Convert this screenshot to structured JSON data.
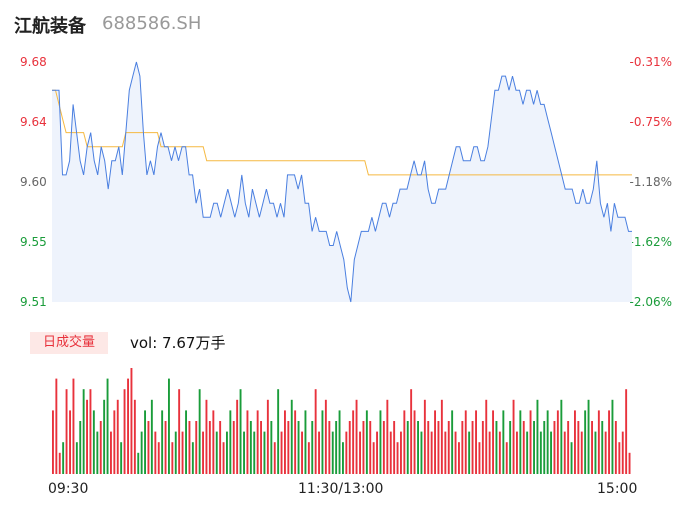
{
  "header": {
    "name": "江航装备",
    "code": "688586.SH"
  },
  "colors": {
    "price_line": "#4a7fe0",
    "avg_line": "#f5b942",
    "up": "#e8323c",
    "down": "#1a9c3a",
    "area": "#eef3fc"
  },
  "volume": {
    "badge": "日成交量",
    "text": "vol: 7.67万手"
  },
  "chart_data": {
    "type": "line",
    "x_ticks": [
      "09:30",
      "11:30/13:00",
      "15:00"
    ],
    "y_left_ticks": [
      "9.68",
      "9.64",
      "9.60",
      "9.55",
      "9.51"
    ],
    "y_right_ticks": [
      "-0.31%",
      "-0.75%",
      "-1.18%",
      "-1.62%",
      "-2.06%"
    ],
    "ylim": [
      9.51,
      9.68
    ],
    "price": [
      9.66,
      9.66,
      9.66,
      9.6,
      9.6,
      9.61,
      9.65,
      9.63,
      9.61,
      9.6,
      9.62,
      9.63,
      9.61,
      9.6,
      9.62,
      9.61,
      9.59,
      9.61,
      9.61,
      9.62,
      9.6,
      9.63,
      9.66,
      9.67,
      9.68,
      9.67,
      9.63,
      9.6,
      9.61,
      9.6,
      9.62,
      9.63,
      9.62,
      9.62,
      9.61,
      9.62,
      9.61,
      9.62,
      9.62,
      9.6,
      9.6,
      9.58,
      9.59,
      9.57,
      9.57,
      9.57,
      9.58,
      9.58,
      9.57,
      9.58,
      9.59,
      9.58,
      9.57,
      9.58,
      9.6,
      9.58,
      9.57,
      9.59,
      9.58,
      9.57,
      9.58,
      9.59,
      9.58,
      9.58,
      9.57,
      9.58,
      9.57,
      9.6,
      9.6,
      9.6,
      9.59,
      9.6,
      9.58,
      9.58,
      9.56,
      9.57,
      9.56,
      9.56,
      9.56,
      9.55,
      9.55,
      9.56,
      9.55,
      9.54,
      9.52,
      9.51,
      9.54,
      9.55,
      9.56,
      9.56,
      9.56,
      9.57,
      9.56,
      9.57,
      9.58,
      9.58,
      9.57,
      9.58,
      9.58,
      9.59,
      9.59,
      9.59,
      9.6,
      9.61,
      9.6,
      9.6,
      9.61,
      9.59,
      9.58,
      9.58,
      9.59,
      9.59,
      9.59,
      9.6,
      9.61,
      9.62,
      9.62,
      9.61,
      9.61,
      9.61,
      9.62,
      9.62,
      9.61,
      9.61,
      9.62,
      9.64,
      9.66,
      9.66,
      9.67,
      9.67,
      9.66,
      9.67,
      9.66,
      9.66,
      9.65,
      9.66,
      9.66,
      9.65,
      9.66,
      9.65,
      9.65,
      9.64,
      9.63,
      9.62,
      9.61,
      9.6,
      9.59,
      9.59,
      9.59,
      9.58,
      9.58,
      9.59,
      9.58,
      9.58,
      9.59,
      9.61,
      9.58,
      9.57,
      9.58,
      9.56,
      9.58,
      9.57,
      9.57,
      9.57,
      9.56,
      9.56
    ],
    "avg": [
      9.66,
      9.66,
      9.65,
      9.64,
      9.63,
      9.63,
      9.63,
      9.63,
      9.63,
      9.63,
      9.62,
      9.62,
      9.62,
      9.62,
      9.62,
      9.62,
      9.62,
      9.62,
      9.62,
      9.62,
      9.62,
      9.63,
      9.63,
      9.63,
      9.63,
      9.63,
      9.63,
      9.63,
      9.63,
      9.63,
      9.63,
      9.62,
      9.62,
      9.62,
      9.62,
      9.62,
      9.62,
      9.62,
      9.62,
      9.62,
      9.62,
      9.62,
      9.62,
      9.62,
      9.61,
      9.61,
      9.61,
      9.61,
      9.61,
      9.61,
      9.61,
      9.61,
      9.61,
      9.61,
      9.61,
      9.61,
      9.61,
      9.61,
      9.61,
      9.61,
      9.61,
      9.61,
      9.61,
      9.61,
      9.61,
      9.61,
      9.61,
      9.61,
      9.61,
      9.61,
      9.61,
      9.61,
      9.61,
      9.61,
      9.61,
      9.61,
      9.61,
      9.61,
      9.61,
      9.61,
      9.61,
      9.61,
      9.61,
      9.61,
      9.61,
      9.61,
      9.61,
      9.61,
      9.61,
      9.61,
      9.6,
      9.6,
      9.6,
      9.6,
      9.6,
      9.6,
      9.6,
      9.6,
      9.6,
      9.6,
      9.6,
      9.6,
      9.6,
      9.6,
      9.6,
      9.6,
      9.6,
      9.6,
      9.6,
      9.6,
      9.6,
      9.6,
      9.6,
      9.6,
      9.6,
      9.6,
      9.6,
      9.6,
      9.6,
      9.6,
      9.6,
      9.6,
      9.6,
      9.6,
      9.6,
      9.6,
      9.6,
      9.6,
      9.6,
      9.6,
      9.6,
      9.6,
      9.6,
      9.6,
      9.6,
      9.6,
      9.6,
      9.6,
      9.6,
      9.6,
      9.6,
      9.6,
      9.6,
      9.6,
      9.6,
      9.6,
      9.6,
      9.6,
      9.6,
      9.6,
      9.6,
      9.6,
      9.6,
      9.6,
      9.6,
      9.6,
      9.6,
      9.6,
      9.6,
      9.6,
      9.6,
      9.6,
      9.6,
      9.6,
      9.6,
      9.6
    ],
    "volumes": [
      6,
      9,
      2,
      3,
      8,
      6,
      9,
      3,
      5,
      8,
      7,
      8,
      6,
      4,
      5,
      7,
      9,
      4,
      6,
      7,
      3,
      8,
      9,
      10,
      7,
      2,
      4,
      6,
      5,
      7,
      4,
      3,
      6,
      5,
      9,
      3,
      4,
      8,
      4,
      6,
      5,
      3,
      5,
      8,
      4,
      7,
      5,
      6,
      4,
      5,
      3,
      4,
      6,
      5,
      7,
      8,
      4,
      6,
      5,
      4,
      6,
      5,
      4,
      7,
      5,
      3,
      8,
      4,
      6,
      5,
      7,
      6,
      5,
      4,
      6,
      3,
      5,
      8,
      4,
      6,
      7,
      5,
      4,
      5,
      6,
      3,
      4,
      5,
      6,
      7,
      4,
      5,
      6,
      5,
      3,
      4,
      6,
      5,
      7,
      4,
      5,
      3,
      4,
      6,
      5,
      8,
      6,
      5,
      4,
      7,
      5,
      4,
      6,
      5,
      7,
      4,
      5,
      6,
      4,
      3,
      5,
      6,
      4,
      5,
      6,
      3,
      5,
      7,
      4,
      6,
      5,
      4,
      6,
      3,
      5,
      7,
      4,
      6,
      5,
      4,
      6,
      5,
      7,
      4,
      5,
      6,
      4,
      5,
      6,
      7,
      4,
      5,
      3,
      6,
      5,
      4,
      6,
      7,
      5,
      4,
      6,
      5,
      4,
      6,
      7,
      5,
      3,
      4,
      8,
      2
    ]
  }
}
